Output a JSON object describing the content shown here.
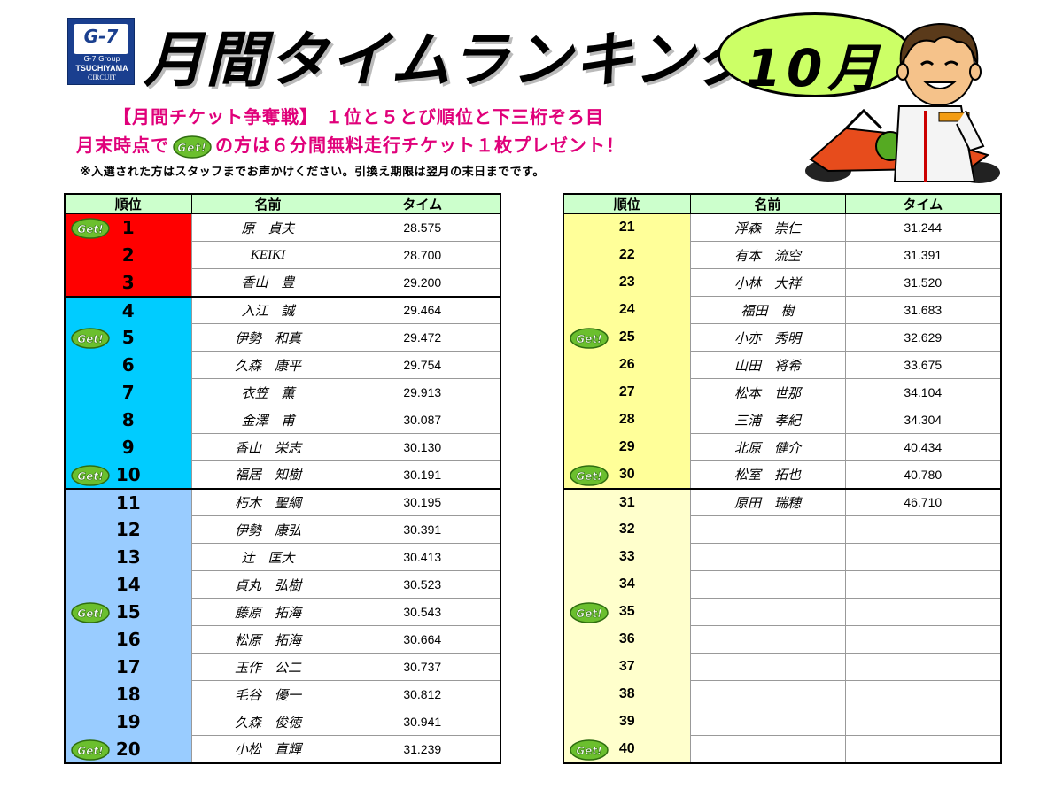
{
  "logo": {
    "brand": "G-7",
    "group": "G-7 Group",
    "name": "TSUCHIYAMA",
    "sub": "CIRCUIT"
  },
  "title": "月間タイムランキング",
  "month": "10月",
  "badge_text": "Get!",
  "promo": {
    "line1": "【月間チケット争奪戦】 １位と５とび順位と下三桁ぞろ目",
    "line2_pre": "月末時点で",
    "line2_post": "の方は６分間無料走行チケット１枚プレゼント！",
    "note": "※入選された方はスタッフまでお声かけください。引換え期限は翌月の末日までです。"
  },
  "headers": {
    "rank": "順位",
    "name": "名前",
    "time": "タイム"
  },
  "colors": {
    "top3": "#ff0000",
    "top10": "#00ccff",
    "top20": "#99ccff",
    "right_top": "#ffff99",
    "right_rest": "#ffffcc",
    "header": "#ccffcc",
    "promo": "#e0007a"
  },
  "left_rows": [
    {
      "rank": "1",
      "name": "原　貞夫",
      "time": "28.575",
      "get": true
    },
    {
      "rank": "2",
      "name": "KEIKI",
      "time": "28.700",
      "get": false
    },
    {
      "rank": "3",
      "name": "香山　豊",
      "time": "29.200",
      "get": false
    },
    {
      "rank": "4",
      "name": "入江　誠",
      "time": "29.464",
      "get": false
    },
    {
      "rank": "5",
      "name": "伊勢　和真",
      "time": "29.472",
      "get": true
    },
    {
      "rank": "6",
      "name": "久森　康平",
      "time": "29.754",
      "get": false
    },
    {
      "rank": "7",
      "name": "衣笠　薫",
      "time": "29.913",
      "get": false
    },
    {
      "rank": "8",
      "name": "金澤　甫",
      "time": "30.087",
      "get": false
    },
    {
      "rank": "9",
      "name": "香山　栄志",
      "time": "30.130",
      "get": false
    },
    {
      "rank": "10",
      "name": "福居　知樹",
      "time": "30.191",
      "get": true
    },
    {
      "rank": "11",
      "name": "朽木　聖綱",
      "time": "30.195",
      "get": false
    },
    {
      "rank": "12",
      "name": "伊勢　康弘",
      "time": "30.391",
      "get": false
    },
    {
      "rank": "13",
      "name": "辻　匡大",
      "time": "30.413",
      "get": false
    },
    {
      "rank": "14",
      "name": "貞丸　弘樹",
      "time": "30.523",
      "get": false
    },
    {
      "rank": "15",
      "name": "藤原　拓海",
      "time": "30.543",
      "get": true
    },
    {
      "rank": "16",
      "name": "松原　拓海",
      "time": "30.664",
      "get": false
    },
    {
      "rank": "17",
      "name": "玉作　公二",
      "time": "30.737",
      "get": false
    },
    {
      "rank": "18",
      "name": "毛谷　優一",
      "time": "30.812",
      "get": false
    },
    {
      "rank": "19",
      "name": "久森　俊徳",
      "time": "30.941",
      "get": false
    },
    {
      "rank": "20",
      "name": "小松　直輝",
      "time": "31.239",
      "get": true
    }
  ],
  "right_rows": [
    {
      "rank": "21",
      "name": "浮森　崇仁",
      "time": "31.244",
      "get": false
    },
    {
      "rank": "22",
      "name": "有本　流空",
      "time": "31.391",
      "get": false
    },
    {
      "rank": "23",
      "name": "小林　大祥",
      "time": "31.520",
      "get": false
    },
    {
      "rank": "24",
      "name": "福田　樹",
      "time": "31.683",
      "get": false
    },
    {
      "rank": "25",
      "name": "小亦　秀明",
      "time": "32.629",
      "get": true
    },
    {
      "rank": "26",
      "name": "山田　将希",
      "time": "33.675",
      "get": false
    },
    {
      "rank": "27",
      "name": "松本　世那",
      "time": "34.104",
      "get": false
    },
    {
      "rank": "28",
      "name": "三浦　孝紀",
      "time": "34.304",
      "get": false
    },
    {
      "rank": "29",
      "name": "北原　健介",
      "time": "40.434",
      "get": false
    },
    {
      "rank": "30",
      "name": "松室　拓也",
      "time": "40.780",
      "get": true
    },
    {
      "rank": "31",
      "name": "原田　瑞穂",
      "time": "46.710",
      "get": false
    },
    {
      "rank": "32",
      "name": "",
      "time": "",
      "get": false
    },
    {
      "rank": "33",
      "name": "",
      "time": "",
      "get": false
    },
    {
      "rank": "34",
      "name": "",
      "time": "",
      "get": false
    },
    {
      "rank": "35",
      "name": "",
      "time": "",
      "get": true
    },
    {
      "rank": "36",
      "name": "",
      "time": "",
      "get": false
    },
    {
      "rank": "37",
      "name": "",
      "time": "",
      "get": false
    },
    {
      "rank": "38",
      "name": "",
      "time": "",
      "get": false
    },
    {
      "rank": "39",
      "name": "",
      "time": "",
      "get": false
    },
    {
      "rank": "40",
      "name": "",
      "time": "",
      "get": true
    }
  ]
}
